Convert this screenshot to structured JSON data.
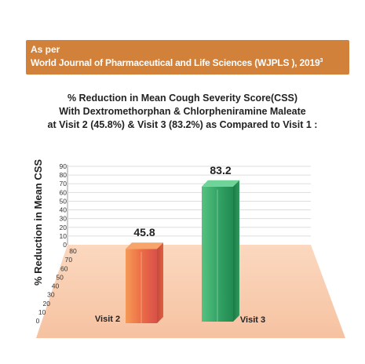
{
  "banner": {
    "line1": "As per",
    "line2": "World Journal of Pharmaceutical and Life Sciences (WJPLS ), 2019",
    "superscript": "3"
  },
  "colors": {
    "banner": "#d2813a",
    "floor": "#f8cdb0",
    "visit2_bar": "#e8744a",
    "visit3_bar": "#3aa86a"
  },
  "chart_data": {
    "type": "bar",
    "title_lines": [
      "% Reduction in Mean Cough Severity Score(CSS)",
      "With Dextromethorphan & Chlorpheniramine Maleate",
      "at Visit 2 (45.8%) & Visit 3 (83.2%) as Compared to Visit 1 :"
    ],
    "ylabel": "% Reduction in Mean CSS",
    "wall_ticks": [
      "0",
      "10",
      "20",
      "30",
      "40",
      "50",
      "60",
      "70",
      "80",
      "90"
    ],
    "floor_ticks": [
      "0",
      "10",
      "20",
      "30",
      "40",
      "50",
      "60",
      "70",
      "80"
    ],
    "categories": [
      "Visit 2",
      "Visit 3"
    ],
    "values": [
      45.8,
      83.2
    ],
    "data_labels": [
      "45.8",
      "83.2"
    ],
    "ylim": [
      0,
      90
    ],
    "grid": true,
    "style": "3d"
  }
}
